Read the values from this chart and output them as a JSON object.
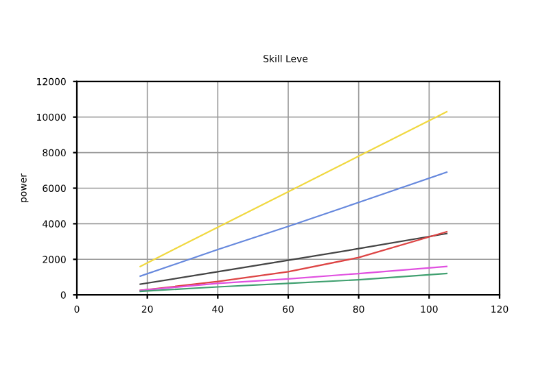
{
  "chart_data": {
    "type": "line",
    "title": "Skill Leve",
    "ylabel": "power",
    "x": [
      18,
      40,
      60,
      80,
      105
    ],
    "series": [
      {
        "color": "#f0d840",
        "values": [
          1600,
          3800,
          5800,
          7800,
          10300
        ]
      },
      {
        "color": "#6688dd",
        "values": [
          1050,
          2550,
          3850,
          5200,
          6900
        ]
      },
      {
        "color": "#444444",
        "values": [
          600,
          1300,
          1950,
          2600,
          3450
        ]
      },
      {
        "color": "#dd4444",
        "values": [
          250,
          750,
          1300,
          2100,
          3550
        ]
      },
      {
        "color": "#e050e0",
        "values": [
          250,
          650,
          900,
          1200,
          1600
        ]
      },
      {
        "color": "#40a070",
        "values": [
          200,
          450,
          650,
          850,
          1200
        ]
      }
    ],
    "xlim": [
      0,
      120
    ],
    "xticks": [
      0,
      20,
      40,
      60,
      80,
      100,
      120
    ],
    "ylim": [
      0,
      12000
    ],
    "yticks": [
      0,
      2000,
      4000,
      6000,
      8000,
      10000,
      12000
    ],
    "grid": true,
    "marker": "none",
    "line_style": "solid"
  }
}
